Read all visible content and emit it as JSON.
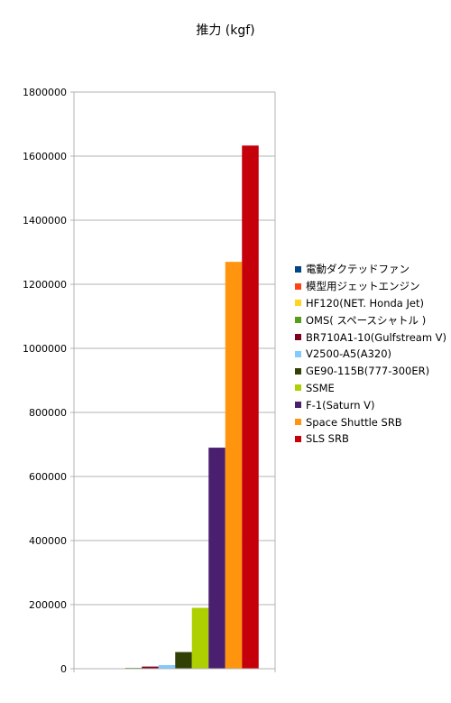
{
  "chart_data": {
    "type": "bar",
    "title": "推力 (kgf)",
    "xlabel": "",
    "ylabel": "",
    "ylim": [
      0,
      1800000
    ],
    "yticks": [
      "0",
      "200000",
      "400000",
      "600000",
      "800000",
      "1000000",
      "1200000",
      "1400000",
      "1600000",
      "1800000"
    ],
    "grid": true,
    "legend_position": "right",
    "series": [
      {
        "name": "電動ダクテッドファン",
        "value": 0,
        "color": "#004586"
      },
      {
        "name": "模型用ジェットエンジン",
        "value": 10,
        "color": "#ff420e"
      },
      {
        "name": "HF120(NET. Honda Jet)",
        "value": 930,
        "color": "#ffd320"
      },
      {
        "name": "OMS( スペースシャトル )",
        "value": 2720,
        "color": "#579d1c"
      },
      {
        "name": "BR710A1-10(Gulfstream V)",
        "value": 6700,
        "color": "#7e0021"
      },
      {
        "name": "V2500-A5(A320)",
        "value": 11300,
        "color": "#83caff"
      },
      {
        "name": "GE90-115B(777-300ER)",
        "value": 52000,
        "color": "#314004"
      },
      {
        "name": "SSME",
        "value": 190000,
        "color": "#aecf00"
      },
      {
        "name": "F-1(Saturn V)",
        "value": 690000,
        "color": "#4b1f6f"
      },
      {
        "name": "Space Shuttle SRB",
        "value": 1270000,
        "color": "#ff950e"
      },
      {
        "name": "SLS SRB",
        "value": 1633000,
        "color": "#c5000b"
      }
    ]
  }
}
